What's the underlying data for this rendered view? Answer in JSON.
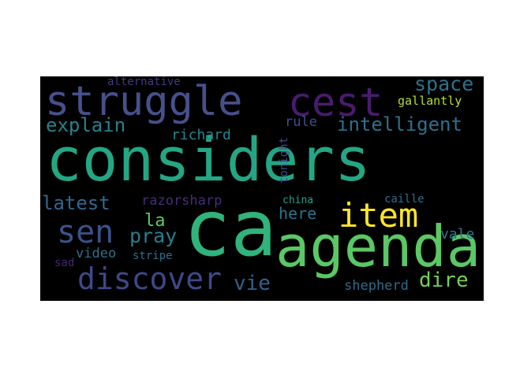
{
  "words": [
    {
      "text": "considers",
      "color": "#24a684"
    },
    {
      "text": "ca",
      "color": "#2fb47c"
    },
    {
      "text": "agenda",
      "color": "#5ac864"
    },
    {
      "text": "struggle",
      "color": "#46508b"
    },
    {
      "text": "cest",
      "color": "#481c6e"
    },
    {
      "text": "item",
      "color": "#fde725"
    },
    {
      "text": "discover",
      "color": "#3e4989"
    },
    {
      "text": "sen",
      "color": "#3b528b"
    },
    {
      "text": "space",
      "color": "#2c728e"
    },
    {
      "text": "intelligent",
      "color": "#2d708e"
    },
    {
      "text": "explain",
      "color": "#26828e"
    },
    {
      "text": "latest",
      "color": "#31688e"
    },
    {
      "text": "here",
      "color": "#2c738e"
    },
    {
      "text": "la",
      "color": "#5ec962"
    },
    {
      "text": "pray",
      "color": "#277f8e"
    },
    {
      "text": "vie",
      "color": "#35608d"
    },
    {
      "text": "dire",
      "color": "#75d054"
    },
    {
      "text": "richard",
      "color": "#25858e"
    },
    {
      "text": "rule",
      "color": "#3b528b"
    },
    {
      "text": "razorsharp",
      "color": "#472d7b"
    },
    {
      "text": "gallantly",
      "color": "#b5de2b"
    },
    {
      "text": "alternative",
      "color": "#443983"
    },
    {
      "text": "video",
      "color": "#2c728e"
    },
    {
      "text": "vale",
      "color": "#2a788e"
    },
    {
      "text": "shepherd",
      "color": "#2f6c8e"
    },
    {
      "text": "caille",
      "color": "#2e6e8e"
    },
    {
      "text": "china",
      "color": "#1fa188"
    },
    {
      "text": "stripe",
      "color": "#2d708e"
    },
    {
      "text": "sad",
      "color": "#482576"
    },
    {
      "text": "tonight",
      "color": "#3e4a89"
    }
  ]
}
